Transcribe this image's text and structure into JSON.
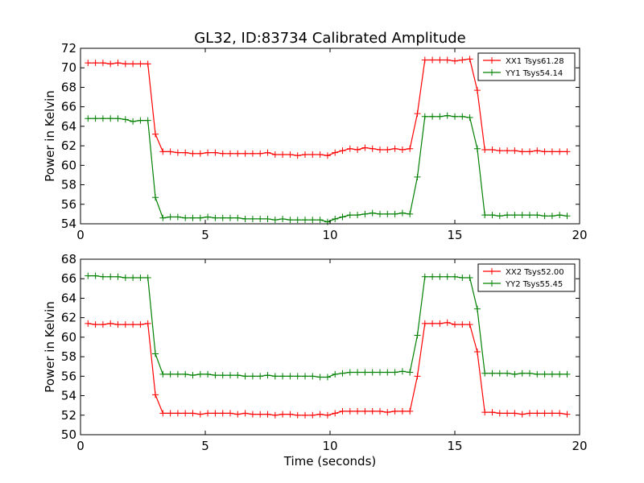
{
  "figure": {
    "title": "GL32, ID:83734 Calibrated Amplitude",
    "xlabel": "Time (seconds)"
  },
  "chart_data": [
    {
      "type": "line",
      "title": "GL32, ID:83734 Calibrated Amplitude",
      "xlabel": "",
      "ylabel": "Power in Kelvin",
      "xlim": [
        0,
        20
      ],
      "ylim": [
        54,
        72
      ],
      "xticks": [
        0,
        5,
        10,
        15,
        20
      ],
      "yticks": [
        54,
        56,
        58,
        60,
        62,
        64,
        66,
        68,
        70,
        72
      ],
      "grid": false,
      "legend_position": "top-right",
      "x": [
        0.3,
        0.6,
        0.9,
        1.2,
        1.5,
        1.8,
        2.1,
        2.4,
        2.7,
        3.0,
        3.3,
        3.6,
        3.9,
        4.2,
        4.5,
        4.8,
        5.1,
        5.4,
        5.7,
        6.0,
        6.3,
        6.6,
        6.9,
        7.2,
        7.5,
        7.8,
        8.1,
        8.4,
        8.7,
        9.0,
        9.3,
        9.6,
        9.9,
        10.2,
        10.5,
        10.8,
        11.1,
        11.4,
        11.7,
        12.0,
        12.3,
        12.6,
        12.9,
        13.2,
        13.5,
        13.8,
        14.1,
        14.4,
        14.7,
        15.0,
        15.3,
        15.6,
        15.9,
        16.2,
        16.5,
        16.8,
        17.1,
        17.4,
        17.7,
        18.0,
        18.3,
        18.6,
        18.9,
        19.2,
        19.5
      ],
      "series": [
        {
          "name": "XX1 Tsys61.28",
          "color": "#ff0000",
          "values": [
            70.5,
            70.5,
            70.5,
            70.4,
            70.5,
            70.4,
            70.4,
            70.4,
            70.4,
            63.2,
            61.4,
            61.4,
            61.3,
            61.3,
            61.2,
            61.2,
            61.3,
            61.3,
            61.2,
            61.2,
            61.2,
            61.2,
            61.2,
            61.2,
            61.3,
            61.1,
            61.1,
            61.1,
            61.0,
            61.1,
            61.1,
            61.1,
            61.0,
            61.3,
            61.5,
            61.7,
            61.6,
            61.8,
            61.7,
            61.6,
            61.6,
            61.7,
            61.6,
            61.7,
            65.3,
            70.8,
            70.8,
            70.8,
            70.8,
            70.7,
            70.8,
            70.9,
            67.7,
            61.6,
            61.6,
            61.5,
            61.5,
            61.5,
            61.4,
            61.4,
            61.5,
            61.4,
            61.4,
            61.4,
            61.4
          ]
        },
        {
          "name": "YY1 Tsys54.14",
          "color": "#008000",
          "values": [
            64.8,
            64.8,
            64.8,
            64.8,
            64.8,
            64.7,
            64.5,
            64.6,
            64.6,
            56.7,
            54.6,
            54.7,
            54.7,
            54.6,
            54.6,
            54.6,
            54.7,
            54.6,
            54.6,
            54.6,
            54.6,
            54.5,
            54.5,
            54.5,
            54.5,
            54.4,
            54.5,
            54.4,
            54.4,
            54.4,
            54.4,
            54.4,
            54.2,
            54.5,
            54.7,
            54.9,
            54.9,
            55.0,
            55.1,
            55.0,
            55.0,
            55.0,
            55.1,
            55.0,
            58.8,
            65.0,
            65.0,
            65.0,
            65.1,
            65.0,
            65.0,
            64.9,
            61.7,
            54.9,
            54.9,
            54.8,
            54.9,
            54.9,
            54.9,
            54.9,
            54.9,
            54.8,
            54.8,
            54.9,
            54.8
          ]
        }
      ]
    },
    {
      "type": "line",
      "title": "",
      "xlabel": "Time (seconds)",
      "ylabel": "Power in Kelvin",
      "xlim": [
        0,
        20
      ],
      "ylim": [
        50,
        68
      ],
      "xticks": [
        0,
        5,
        10,
        15,
        20
      ],
      "yticks": [
        50,
        52,
        54,
        56,
        58,
        60,
        62,
        64,
        66,
        68
      ],
      "grid": false,
      "legend_position": "top-right",
      "x": [
        0.3,
        0.6,
        0.9,
        1.2,
        1.5,
        1.8,
        2.1,
        2.4,
        2.7,
        3.0,
        3.3,
        3.6,
        3.9,
        4.2,
        4.5,
        4.8,
        5.1,
        5.4,
        5.7,
        6.0,
        6.3,
        6.6,
        6.9,
        7.2,
        7.5,
        7.8,
        8.1,
        8.4,
        8.7,
        9.0,
        9.3,
        9.6,
        9.9,
        10.2,
        10.5,
        10.8,
        11.1,
        11.4,
        11.7,
        12.0,
        12.3,
        12.6,
        12.9,
        13.2,
        13.5,
        13.8,
        14.1,
        14.4,
        14.7,
        15.0,
        15.3,
        15.6,
        15.9,
        16.2,
        16.5,
        16.8,
        17.1,
        17.4,
        17.7,
        18.0,
        18.3,
        18.6,
        18.9,
        19.2,
        19.5
      ],
      "series": [
        {
          "name": "XX2 Tsys52.00",
          "color": "#ff0000",
          "values": [
            61.4,
            61.3,
            61.3,
            61.4,
            61.3,
            61.3,
            61.3,
            61.3,
            61.4,
            54.1,
            52.2,
            52.2,
            52.2,
            52.2,
            52.2,
            52.1,
            52.2,
            52.2,
            52.2,
            52.2,
            52.1,
            52.2,
            52.1,
            52.1,
            52.1,
            52.0,
            52.1,
            52.1,
            52.0,
            52.0,
            52.0,
            52.1,
            52.0,
            52.2,
            52.4,
            52.4,
            52.4,
            52.4,
            52.4,
            52.4,
            52.3,
            52.4,
            52.4,
            52.4,
            56.0,
            61.4,
            61.4,
            61.4,
            61.5,
            61.3,
            61.3,
            61.3,
            58.5,
            52.3,
            52.3,
            52.2,
            52.2,
            52.2,
            52.1,
            52.2,
            52.2,
            52.2,
            52.2,
            52.2,
            52.1
          ]
        },
        {
          "name": "YY2 Tsys55.45",
          "color": "#008000",
          "values": [
            66.3,
            66.3,
            66.2,
            66.2,
            66.2,
            66.1,
            66.1,
            66.1,
            66.1,
            58.3,
            56.2,
            56.2,
            56.2,
            56.2,
            56.1,
            56.2,
            56.2,
            56.1,
            56.1,
            56.1,
            56.1,
            56.0,
            56.0,
            56.0,
            56.1,
            56.0,
            56.0,
            56.0,
            56.0,
            56.0,
            56.0,
            55.9,
            55.9,
            56.2,
            56.3,
            56.4,
            56.4,
            56.4,
            56.4,
            56.4,
            56.4,
            56.4,
            56.5,
            56.4,
            60.2,
            66.2,
            66.2,
            66.2,
            66.2,
            66.2,
            66.1,
            66.1,
            62.9,
            56.3,
            56.3,
            56.3,
            56.3,
            56.2,
            56.3,
            56.3,
            56.2,
            56.2,
            56.2,
            56.2,
            56.2
          ]
        }
      ]
    }
  ]
}
